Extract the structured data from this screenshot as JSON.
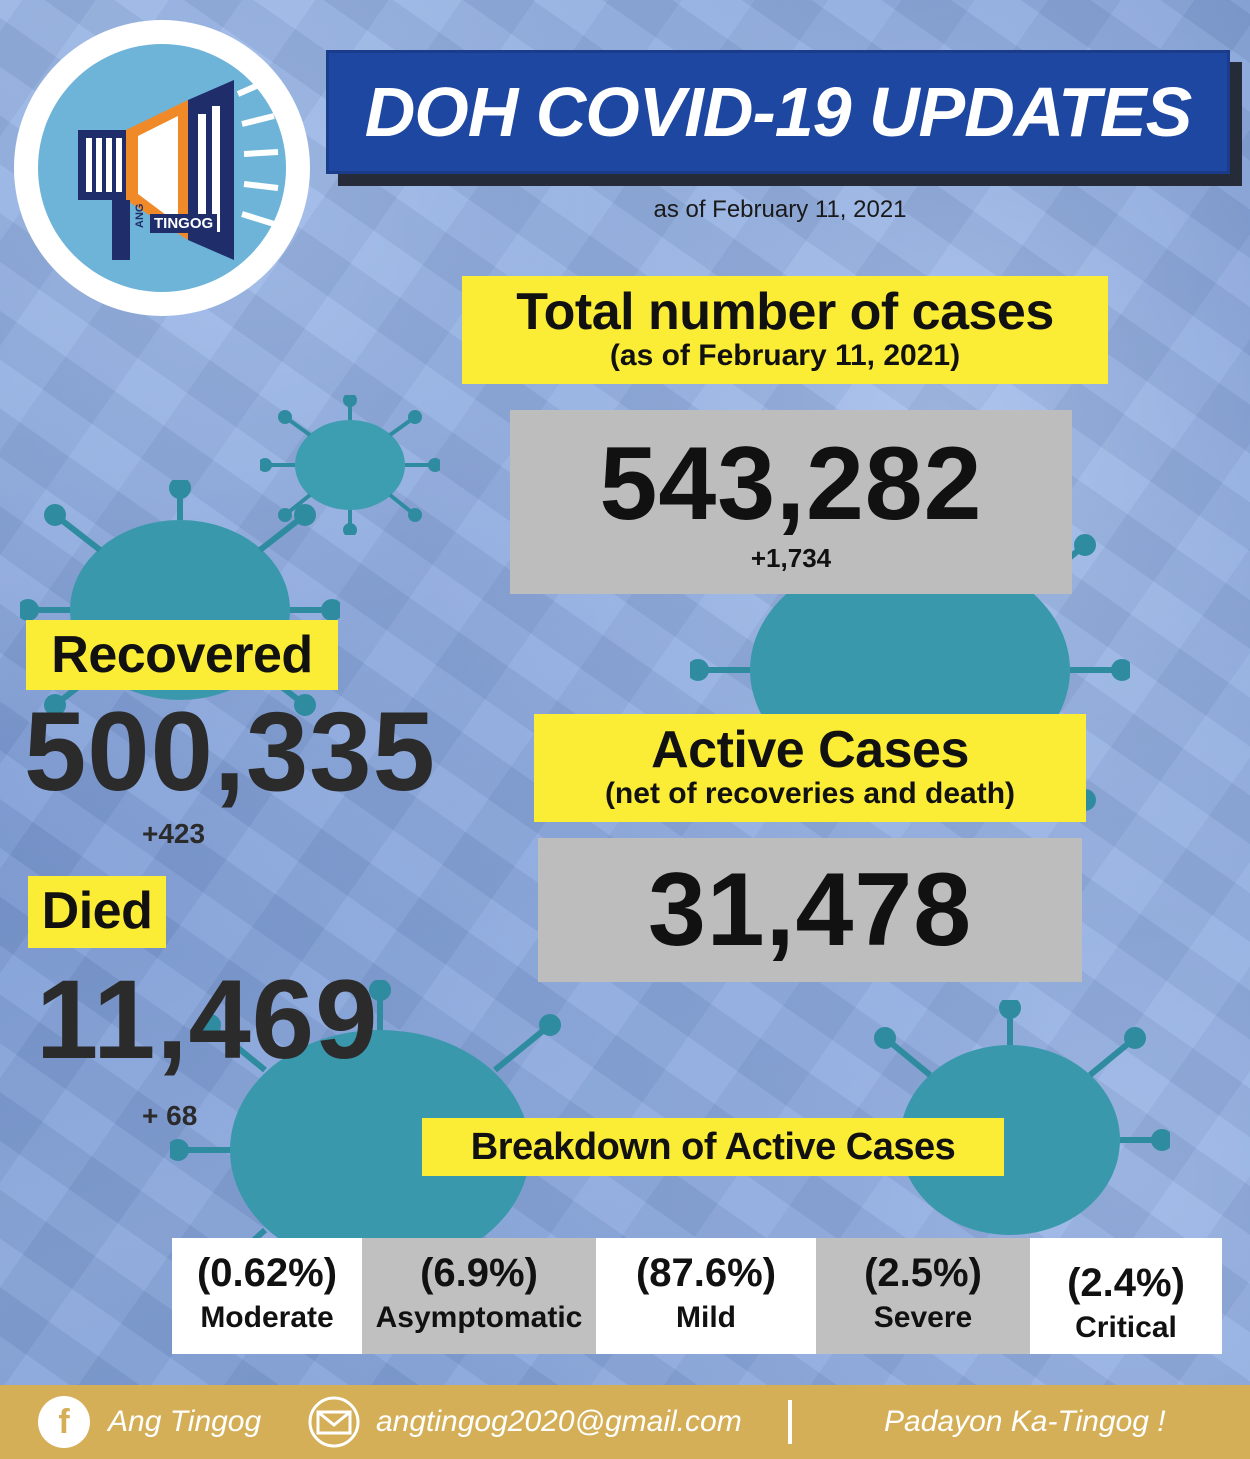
{
  "header": {
    "title": "DOH COVID-19 UPDATES",
    "as_of": "as of February 11, 2021"
  },
  "logo": {
    "name_left": "ANG",
    "name_right": "TINGOG",
    "icon": "megaphone-icon"
  },
  "total": {
    "label": "Total number of cases",
    "sublabel": "(as of February 11, 2021)",
    "value": "543,282",
    "delta": "+1,734"
  },
  "recovered": {
    "label": "Recovered",
    "value": "500,335",
    "delta": "+423"
  },
  "died": {
    "label": "Died",
    "value": "11,469",
    "delta": "+ 68"
  },
  "active": {
    "label": "Active Cases",
    "sublabel": "(net of recoveries and death)",
    "value": "31,478"
  },
  "breakdown": {
    "label": "Breakdown of Active Cases",
    "items": [
      {
        "pct": "(0.62%)",
        "label": "Moderate"
      },
      {
        "pct": "(6.9%)",
        "label": "Asymptomatic"
      },
      {
        "pct": "(87.6%)",
        "label": "Mild"
      },
      {
        "pct": "(2.5%)",
        "label": "Severe"
      },
      {
        "pct": "(2.4%)",
        "label": "Critical"
      }
    ]
  },
  "footer": {
    "facebook": "Ang Tingog",
    "email": "angtingog2020@gmail.com",
    "tagline": "Padayon Ka-Tingog !"
  },
  "colors": {
    "title_blue": "#1d47a1",
    "label_yellow": "#fbec35",
    "box_gray": "#bdbdbd",
    "footer_gold": "#d4af57"
  }
}
